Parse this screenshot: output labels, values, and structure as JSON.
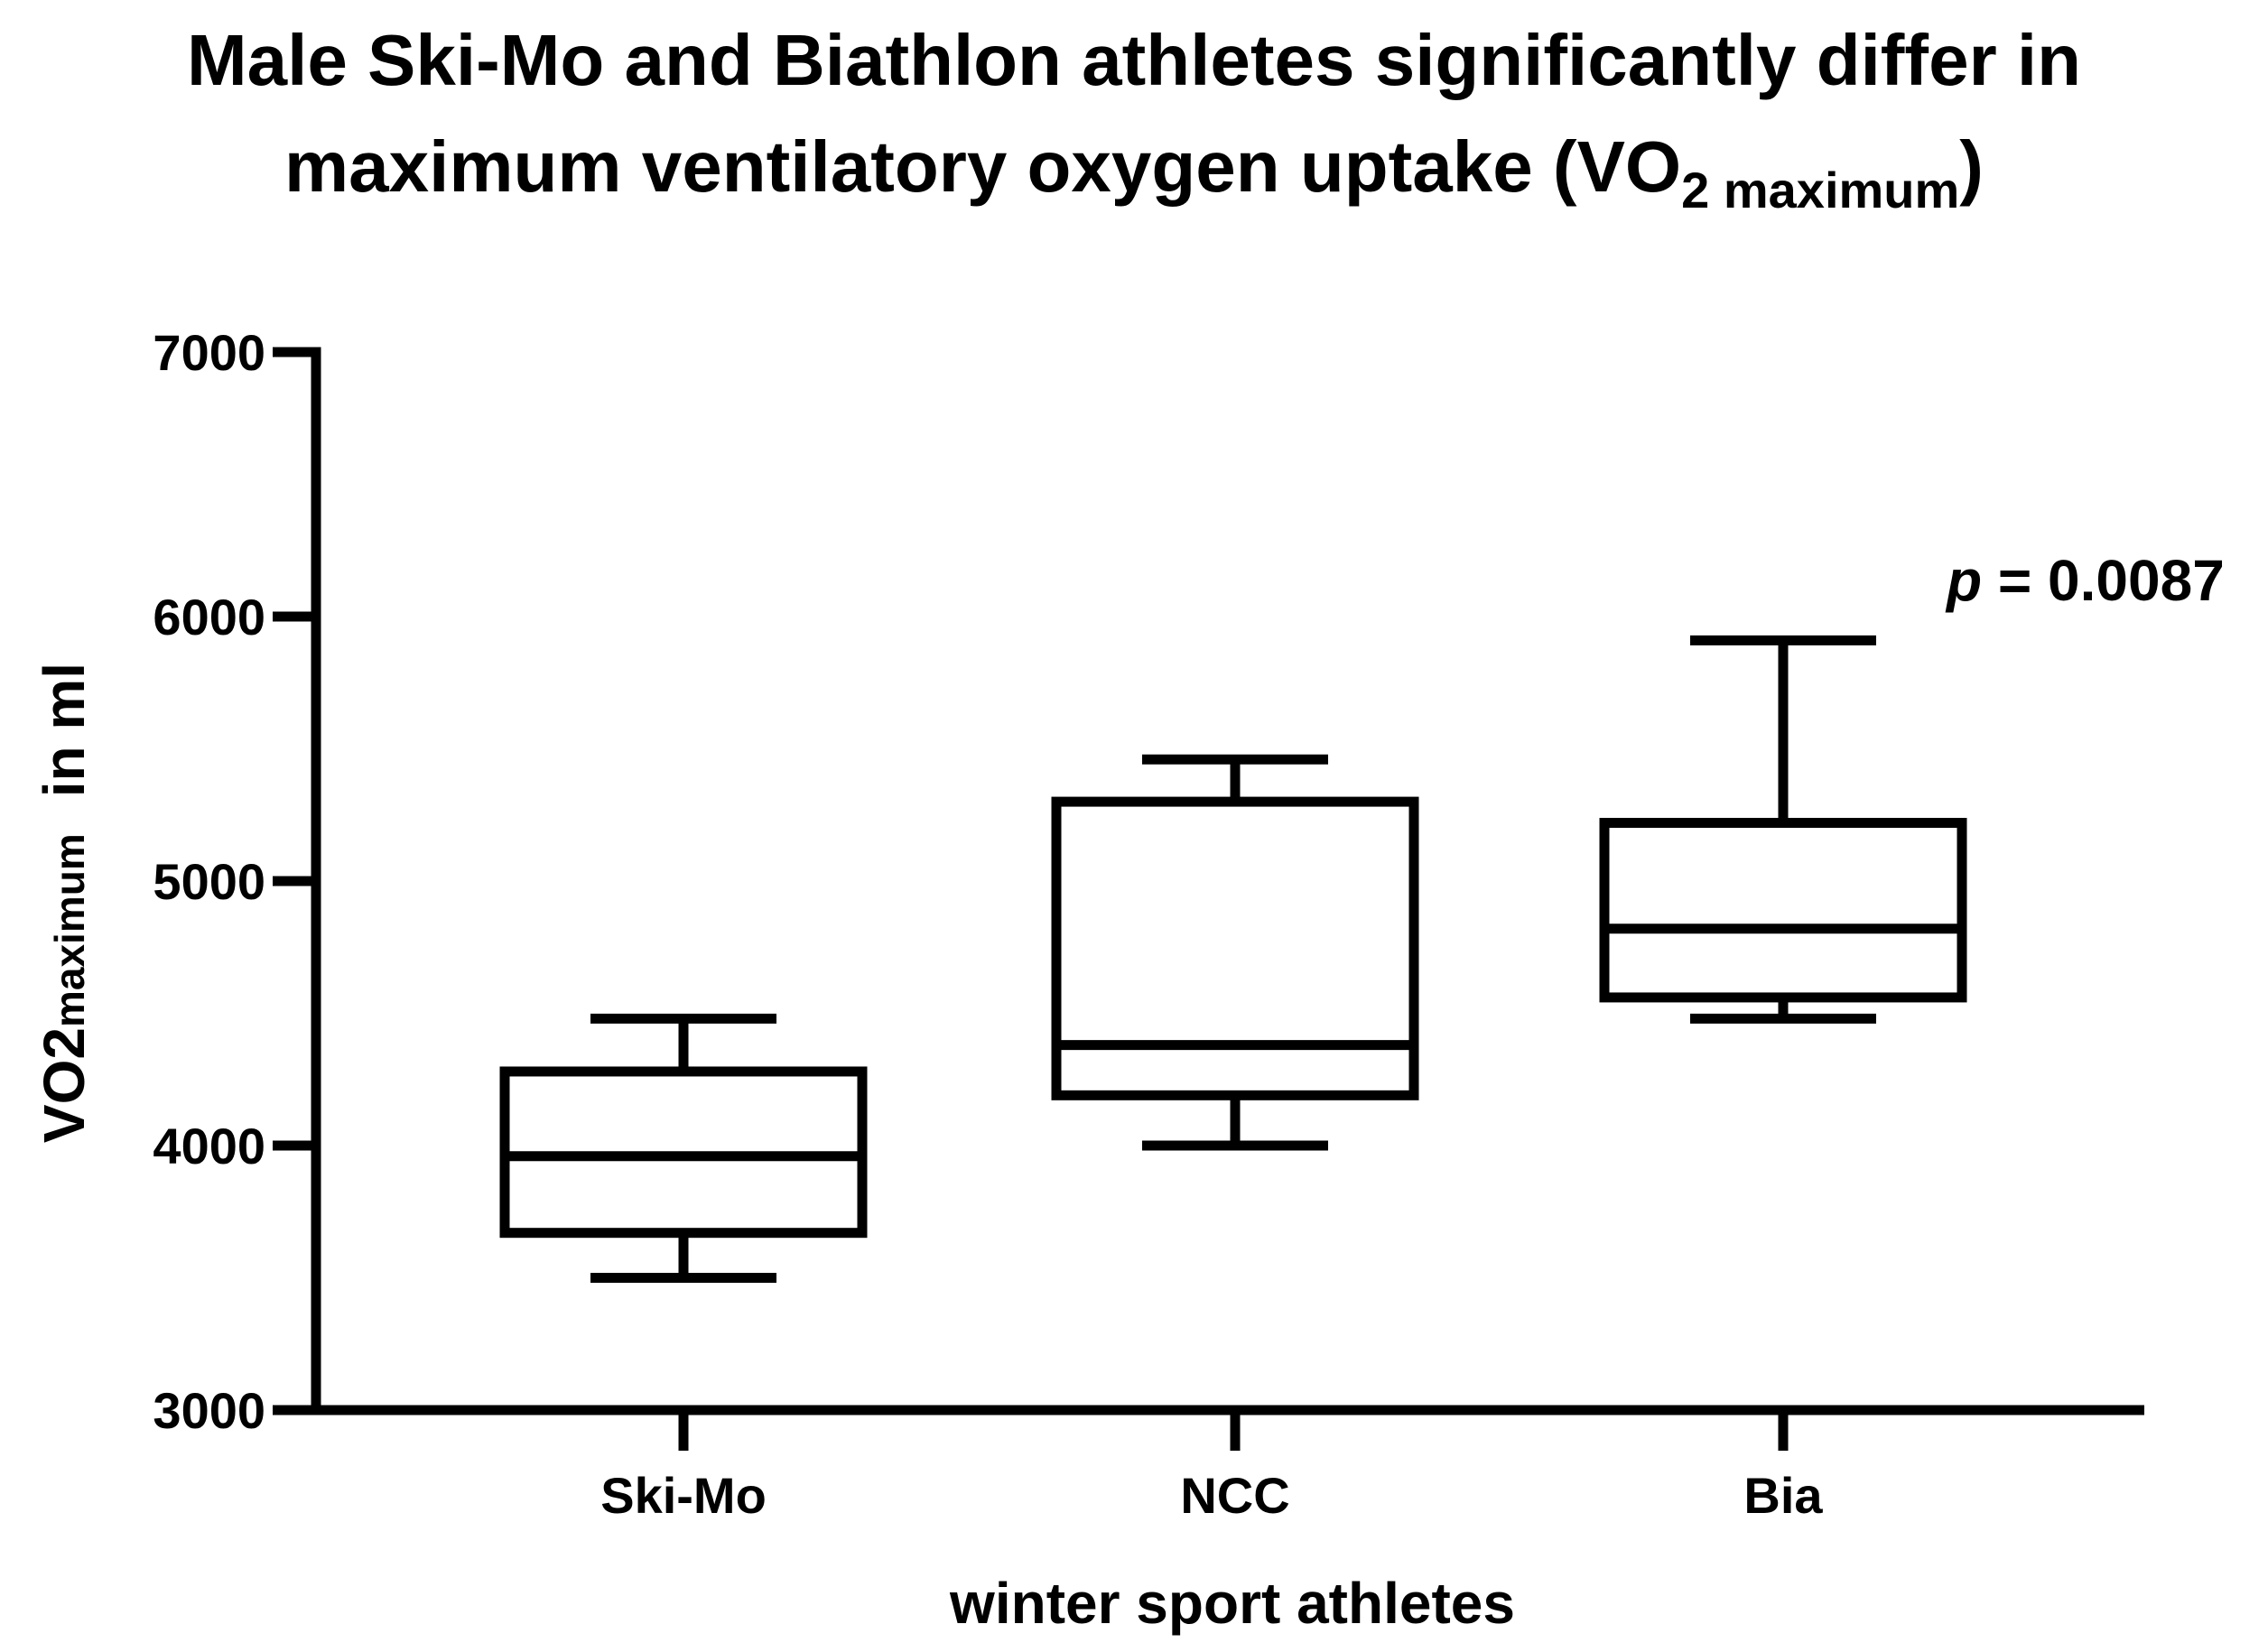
{
  "chart_data": {
    "type": "box",
    "title": {
      "line1": "Male Ski-Mo and Biathlon athletes significantly differ in",
      "line2_prefix": "maximum ventilatory oxygen uptake (VO",
      "line2_sub": "2 maximum",
      "line2_suffix": ")"
    },
    "ylabel": {
      "prefix": "VO2",
      "sub": "maximum",
      "suffix": "in ml"
    },
    "xlabel": "winter sport athletes",
    "ylim": [
      3000,
      7000
    ],
    "yticks": [
      3000,
      4000,
      5000,
      6000,
      7000
    ],
    "ytick_labels": [
      "3000",
      "4000",
      "5000",
      "6000",
      "7000"
    ],
    "categories": [
      "Ski-Mo",
      "NCC",
      "Bia"
    ],
    "boxes": [
      {
        "label": "Ski-Mo",
        "min": 3500,
        "q1": 3670,
        "median": 3960,
        "q3": 4280,
        "max": 4480
      },
      {
        "label": "NCC",
        "min": 4000,
        "q1": 4190,
        "median": 4380,
        "q3": 5300,
        "max": 5460
      },
      {
        "label": "Bia",
        "min": 4480,
        "q1": 4560,
        "median": 4820,
        "q3": 5220,
        "max": 5910
      }
    ],
    "annotation": {
      "italic": "p",
      "text": " = 0.0087"
    },
    "line_color": "#000000"
  }
}
